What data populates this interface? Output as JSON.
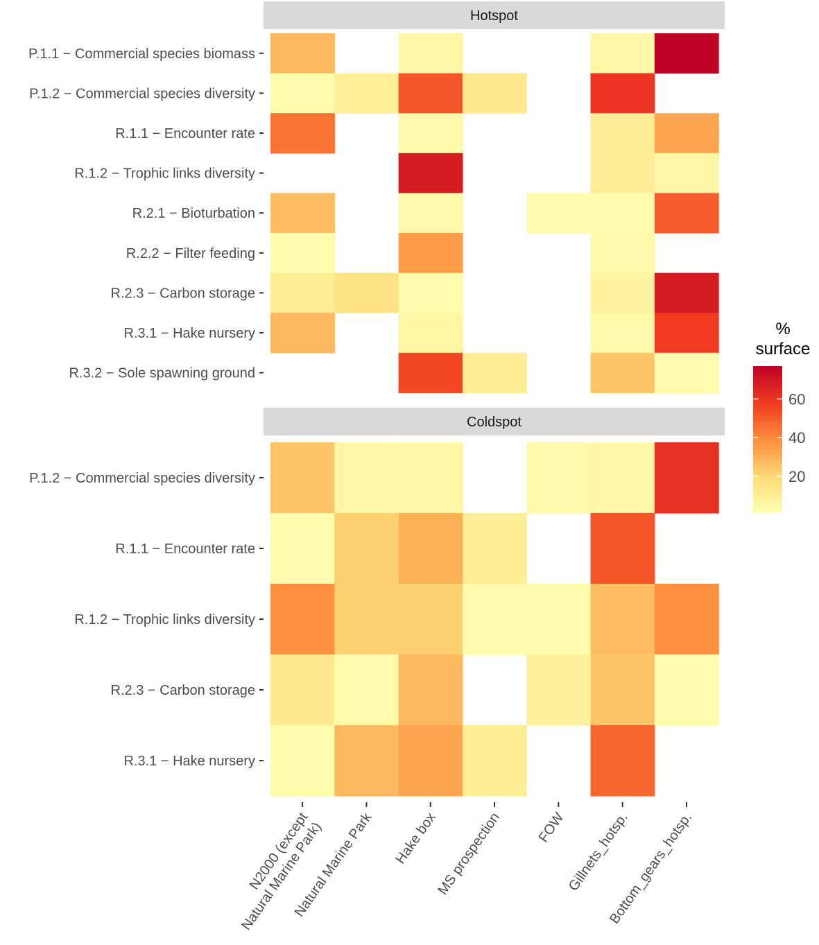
{
  "chart_data": {
    "type": "heatmap",
    "columns": [
      "N2000 (except Natural Marine Park)",
      "Natural Marine Park",
      "Hake box",
      "MS prospection",
      "FOW",
      "Gillnets_hotsp.",
      "Bottom_gears_hotsp."
    ],
    "column_label_lines": [
      [
        "N2000 (except",
        "Natural Marine Park)"
      ],
      [
        "Natural Marine Park"
      ],
      [
        "Hake box"
      ],
      [
        "MS prospection"
      ],
      [
        "FOW"
      ],
      [
        "Gillnets_hotsp."
      ],
      [
        "Bottom_gears_hotsp."
      ]
    ],
    "panels": [
      {
        "title": "Hotspot",
        "rows": [
          "P.1.1 − Commercial species biomass",
          "P.1.2 − Commercial species diversity",
          "R.1.1 − Encounter rate",
          "R.1.2 − Trophic links diversity",
          "R.2.1 − Bioturbation",
          "R.2.2 − Filter feeding",
          "R.2.3 − Carbon storage",
          "R.3.1 − Hake nursery",
          "R.3.2 − Sole spawning ground"
        ],
        "values": [
          [
            28,
            null,
            5,
            null,
            null,
            5,
            76
          ],
          [
            3,
            9,
            52,
            12,
            null,
            60,
            null
          ],
          [
            45,
            null,
            4,
            null,
            null,
            10,
            33
          ],
          [
            null,
            null,
            68,
            null,
            null,
            10,
            5
          ],
          [
            27,
            null,
            4,
            null,
            3,
            3,
            50
          ],
          [
            3,
            null,
            35,
            null,
            null,
            4,
            null
          ],
          [
            10,
            15,
            3,
            null,
            null,
            7,
            68
          ],
          [
            28,
            null,
            6,
            null,
            null,
            4,
            58
          ],
          [
            null,
            null,
            55,
            10,
            null,
            25,
            3
          ]
        ]
      },
      {
        "title": "Coldspot",
        "rows": [
          "P.1.2 − Commercial species diversity",
          "R.1.1 − Encounter rate",
          "R.1.2 − Trophic links diversity",
          "R.2.3 − Carbon storage",
          "R.3.1 − Hake nursery"
        ],
        "values": [
          [
            25,
            5,
            5,
            null,
            4,
            5,
            62
          ],
          [
            3,
            22,
            30,
            10,
            null,
            52,
            null
          ],
          [
            38,
            22,
            22,
            3,
            3,
            27,
            38
          ],
          [
            12,
            3,
            28,
            null,
            8,
            25,
            3
          ],
          [
            3,
            28,
            33,
            10,
            null,
            48,
            null
          ]
        ]
      }
    ],
    "legend": {
      "title_lines": [
        "%",
        "surface"
      ],
      "ticks": [
        60,
        40,
        20
      ],
      "range": [
        1,
        77
      ]
    }
  }
}
